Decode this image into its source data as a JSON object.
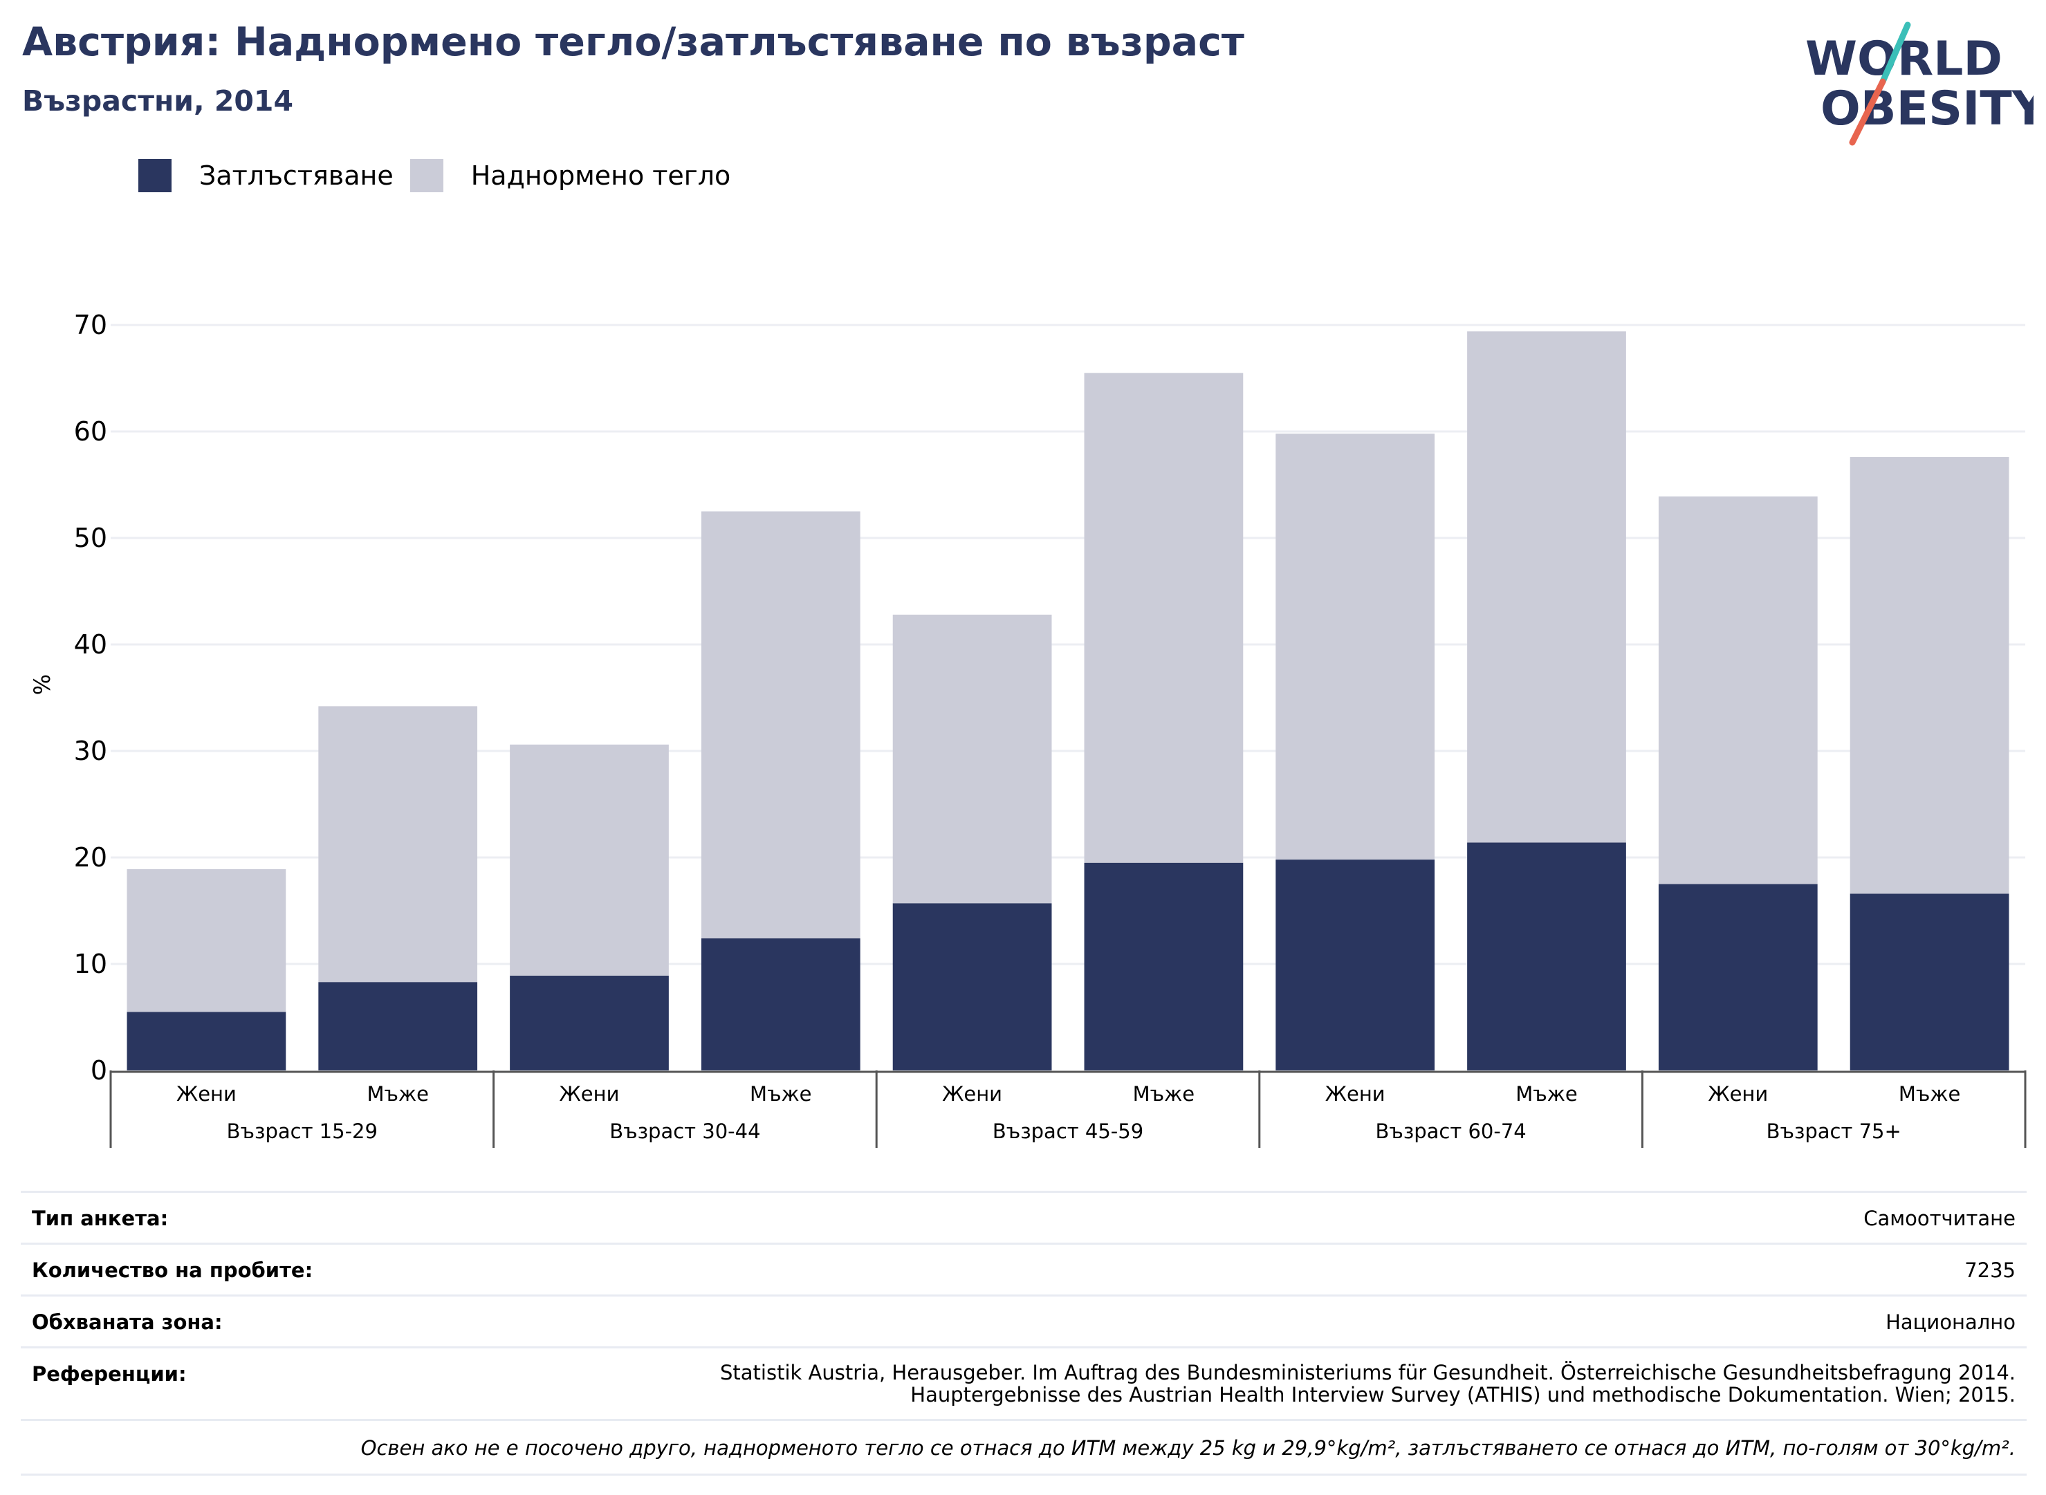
{
  "header": {
    "title": "Австрия: Наднормено тегло/затлъстяване по възраст",
    "subtitle": "Възрастни, 2014"
  },
  "logo": {
    "line1": "WORLD",
    "line2": "OBESITY",
    "colors": {
      "text": "#2a365f",
      "slash_top": "#3bbfb8",
      "slash_bottom": "#e8654f"
    }
  },
  "legend": [
    {
      "label": "Затлъстяване",
      "color": "#2a365f"
    },
    {
      "label": "Наднормено тегло",
      "color": "#cbccd8"
    }
  ],
  "chart_data": {
    "type": "bar",
    "stacked": true,
    "ylabel": "%",
    "ylim": [
      0,
      70
    ],
    "yticks": [
      0,
      10,
      20,
      30,
      40,
      50,
      60,
      70
    ],
    "grid": true,
    "legend_position": "top-left",
    "categories": [
      "Жени",
      "Мъже",
      "Жени",
      "Мъже",
      "Жени",
      "Мъже",
      "Жени",
      "Мъже",
      "Жени",
      "Мъже"
    ],
    "groups": [
      "Възраст 15-29",
      "Възраст 30-44",
      "Възраст 45-59",
      "Възраст 60-74",
      "Възраст 75+"
    ],
    "series": [
      {
        "name": "Затлъстяване",
        "color": "#2a365f",
        "values": [
          5.5,
          8.3,
          8.9,
          12.4,
          15.7,
          19.5,
          19.8,
          21.4,
          17.5,
          16.6
        ]
      },
      {
        "name": "Наднормено тегло",
        "color": "#cbccd8",
        "values": [
          13.4,
          25.9,
          21.7,
          40.1,
          27.1,
          46.0,
          40.0,
          48.0,
          36.4,
          41.0
        ]
      }
    ]
  },
  "info": {
    "rows": [
      {
        "label": "Тип анкета:",
        "value": "Самоотчитане"
      },
      {
        "label": "Количество на пробите:",
        "value": "7235"
      },
      {
        "label": "Обхваната зона:",
        "value": "Национално"
      }
    ],
    "references": {
      "label": "Референции:",
      "line1": "Statistik Austria, Herausgeber. Im Auftrag des Bundesministeriums für Gesundheit. Österreichische Gesundheitsbefragung 2014.",
      "line2": "Hauptergebnisse des Austrian Health Interview Survey (ATHIS) und methodische Dokumentation. Wien; 2015."
    },
    "note": "Освен ако не е посочено друго, наднорменото тегло се отнася до ИТМ между 25 kg и 29,9°kg/m², затлъстяването се отнася до ИТМ, по-голям от 30°kg/m²."
  }
}
